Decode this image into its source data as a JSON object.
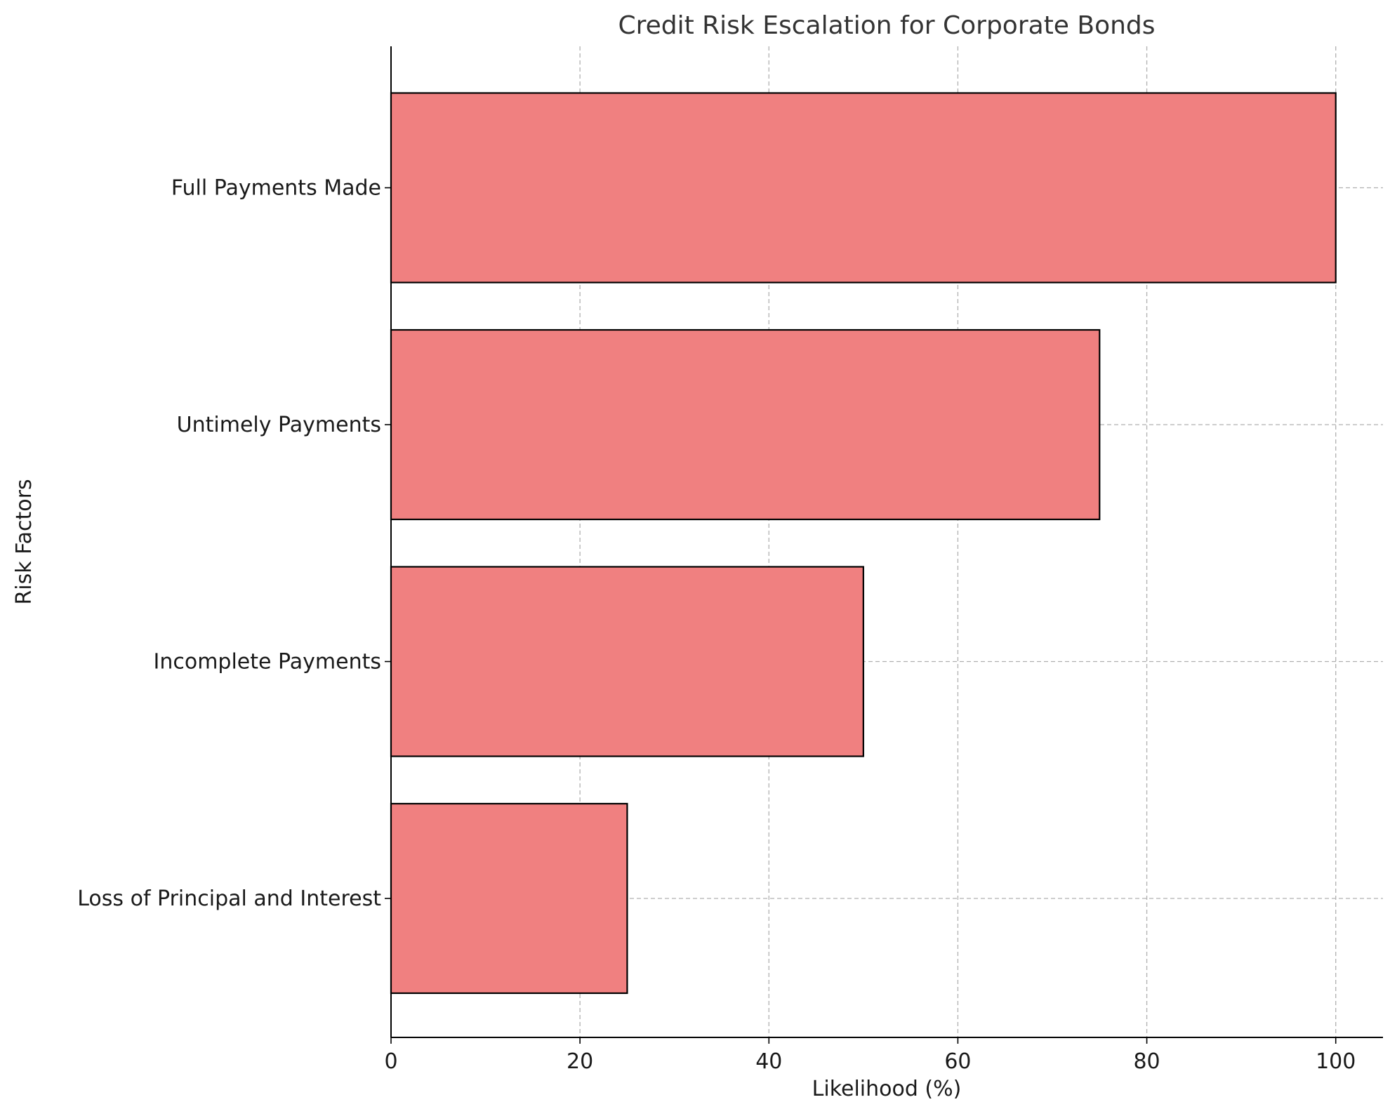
{
  "chart_data": {
    "type": "bar",
    "orientation": "horizontal",
    "title": "Credit Risk Escalation for Corporate Bonds",
    "xlabel": "Likelihood (%)",
    "ylabel": "Risk Factors",
    "categories": [
      "Loss of Principal and Interest",
      "Incomplete Payments",
      "Untimely Payments",
      "Full Payments Made"
    ],
    "values": [
      25,
      50,
      75,
      100
    ],
    "xlim": [
      0,
      105
    ],
    "xticks": [
      0,
      20,
      40,
      60,
      80,
      100
    ],
    "grid": true,
    "bar_color": "#f08080",
    "bar_edge_color": "#000000",
    "spines": [
      "left",
      "bottom"
    ]
  }
}
